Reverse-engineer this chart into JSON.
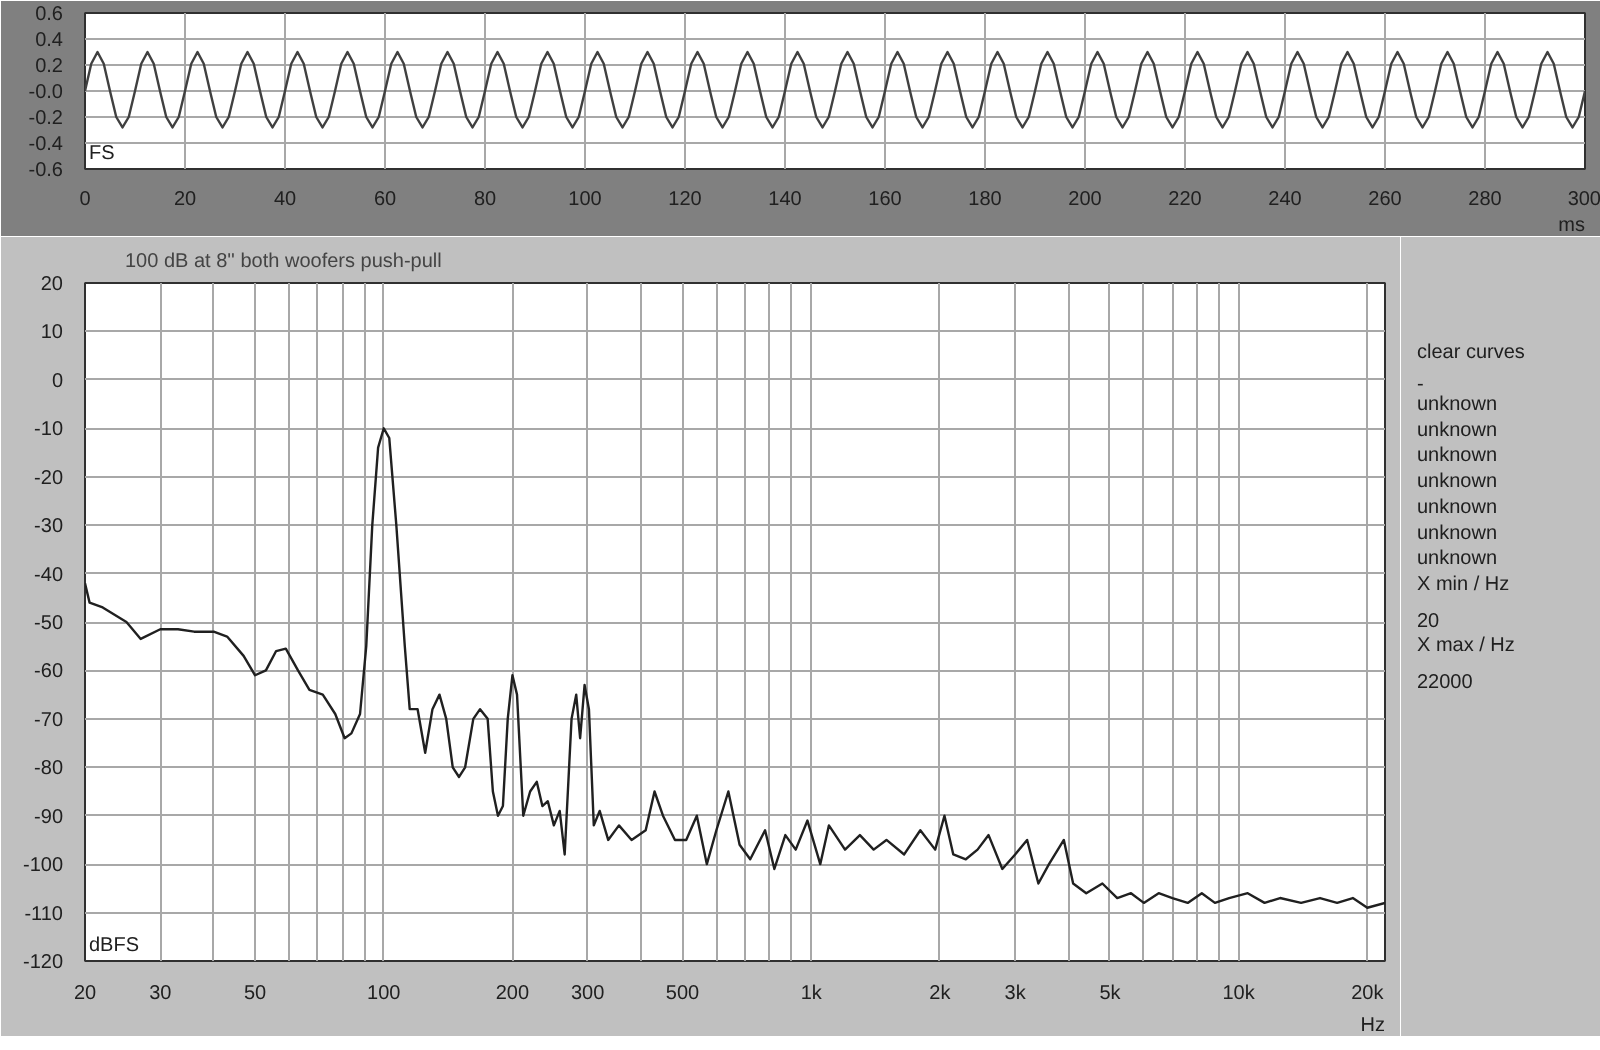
{
  "chart_data": [
    {
      "type": "line",
      "ylabel": "FS",
      "xlim": [
        0,
        300
      ],
      "ylim": [
        -0.6,
        0.6
      ],
      "xticks": [
        0,
        20,
        40,
        60,
        80,
        100,
        120,
        140,
        160,
        180,
        200,
        220,
        240,
        260,
        280,
        300
      ],
      "xlabel": "ms",
      "yticks": [
        0.6,
        0.4,
        0.2,
        {
          "value": 0,
          "label": "-0.0"
        },
        -0.2,
        -0.4,
        -0.6
      ],
      "grid": true,
      "marker": "none",
      "line_style": "solid",
      "series": [
        {
          "color": "#404040",
          "x": [
            0,
            1.25,
            2.5,
            3.75,
            5,
            6.25,
            7.5,
            8.75,
            10,
            11.25,
            12.5,
            13.75,
            15,
            16.25,
            17.5,
            18.75,
            20,
            21.25,
            22.5,
            23.75,
            25,
            26.25,
            27.5,
            28.75,
            30,
            31.25,
            32.5,
            33.75,
            35,
            36.25,
            37.5,
            38.75,
            40,
            41.25,
            42.5,
            43.75,
            45,
            46.25,
            47.5,
            48.75,
            50,
            51.25,
            52.5,
            53.75,
            55,
            56.25,
            57.5,
            58.75,
            60,
            61.25,
            62.5,
            63.75,
            65,
            66.25,
            67.5,
            68.75,
            70,
            71.25,
            72.5,
            73.75,
            75,
            76.25,
            77.5,
            78.75,
            80,
            81.25,
            82.5,
            83.75,
            85,
            86.25,
            87.5,
            88.75,
            90,
            91.25,
            92.5,
            93.75,
            95,
            96.25,
            97.5,
            98.75,
            100,
            101.25,
            102.5,
            103.75,
            105,
            106.25,
            107.5,
            108.75,
            110,
            111.25,
            112.5,
            113.75,
            115,
            116.25,
            117.5,
            118.75,
            120,
            121.25,
            122.5,
            123.75,
            125,
            126.25,
            127.5,
            128.75,
            130,
            131.25,
            132.5,
            133.75,
            135,
            136.25,
            137.5,
            138.75,
            140,
            141.25,
            142.5,
            143.75,
            145,
            146.25,
            147.5,
            148.75,
            150,
            151.25,
            152.5,
            153.75,
            155,
            156.25,
            157.5,
            158.75,
            160,
            161.25,
            162.5,
            163.75,
            165,
            166.25,
            167.5,
            168.75,
            170,
            171.25,
            172.5,
            173.75,
            175,
            176.25,
            177.5,
            178.75,
            180,
            181.25,
            182.5,
            183.75,
            185,
            186.25,
            187.5,
            188.75,
            190,
            191.25,
            192.5,
            193.75,
            195,
            196.25,
            197.5,
            198.75,
            200,
            201.25,
            202.5,
            203.75,
            205,
            206.25,
            207.5,
            208.75,
            210,
            211.25,
            212.5,
            213.75,
            215,
            216.25,
            217.5,
            218.75,
            220,
            221.25,
            222.5,
            223.75,
            225,
            226.25,
            227.5,
            228.75,
            230,
            231.25,
            232.5,
            233.75,
            235,
            236.25,
            237.5,
            238.75,
            240,
            241.25,
            242.5,
            243.75,
            245,
            246.25,
            247.5,
            248.75,
            250,
            251.25,
            252.5,
            253.75,
            255,
            256.25,
            257.5,
            258.75,
            260,
            261.25,
            262.5,
            263.75,
            265,
            266.25,
            267.5,
            268.75,
            270,
            271.25,
            272.5,
            273.75,
            275,
            276.25,
            277.5,
            278.75,
            280,
            281.25,
            282.5,
            283.75,
            285,
            286.25,
            287.5,
            288.75,
            290,
            291.25,
            292.5,
            293.75,
            295,
            296.25,
            297.5,
            298.75,
            300
          ],
          "values": [
            0,
            0.21,
            0.3,
            0.21,
            0,
            -0.2,
            -0.28,
            -0.2,
            0,
            0.21,
            0.3,
            0.21,
            0,
            -0.2,
            -0.28,
            -0.2,
            0,
            0.21,
            0.3,
            0.21,
            0,
            -0.2,
            -0.28,
            -0.2,
            0,
            0.21,
            0.3,
            0.21,
            0,
            -0.2,
            -0.28,
            -0.2,
            0,
            0.21,
            0.3,
            0.21,
            0,
            -0.2,
            -0.28,
            -0.2,
            0,
            0.21,
            0.3,
            0.21,
            0,
            -0.2,
            -0.28,
            -0.2,
            0,
            0.21,
            0.3,
            0.21,
            0,
            -0.2,
            -0.28,
            -0.2,
            0,
            0.21,
            0.3,
            0.21,
            0,
            -0.2,
            -0.28,
            -0.2,
            0,
            0.21,
            0.3,
            0.21,
            0,
            -0.2,
            -0.28,
            -0.2,
            0,
            0.21,
            0.3,
            0.21,
            0,
            -0.2,
            -0.28,
            -0.2,
            0,
            0.21,
            0.3,
            0.21,
            0,
            -0.2,
            -0.28,
            -0.2,
            0,
            0.21,
            0.3,
            0.21,
            0,
            -0.2,
            -0.28,
            -0.2,
            0,
            0.21,
            0.3,
            0.21,
            0,
            -0.2,
            -0.28,
            -0.2,
            0,
            0.21,
            0.3,
            0.21,
            0,
            -0.2,
            -0.28,
            -0.2,
            0,
            0.21,
            0.3,
            0.21,
            0,
            -0.2,
            -0.28,
            -0.2,
            0,
            0.21,
            0.3,
            0.21,
            0,
            -0.2,
            -0.28,
            -0.2,
            0,
            0.21,
            0.3,
            0.21,
            0,
            -0.2,
            -0.28,
            -0.2,
            0,
            0.21,
            0.3,
            0.21,
            0,
            -0.2,
            -0.28,
            -0.2,
            0,
            0.21,
            0.3,
            0.21,
            0,
            -0.2,
            -0.28,
            -0.2,
            0,
            0.21,
            0.3,
            0.21,
            0,
            -0.2,
            -0.28,
            -0.2,
            0,
            0.21,
            0.3,
            0.21,
            0,
            -0.2,
            -0.28,
            -0.2,
            0,
            0.21,
            0.3,
            0.21,
            0,
            -0.2,
            -0.28,
            -0.2,
            0,
            0.21,
            0.3,
            0.21,
            0,
            -0.2,
            -0.28,
            -0.2,
            0,
            0.21,
            0.3,
            0.21,
            0,
            -0.2,
            -0.28,
            -0.2,
            0,
            0.21,
            0.3,
            0.21,
            0,
            -0.2,
            -0.28,
            -0.2,
            0,
            0.21,
            0.3,
            0.21,
            0,
            -0.2,
            -0.28,
            -0.2,
            0,
            0.21,
            0.3,
            0.21,
            0,
            -0.2,
            -0.28,
            -0.2,
            0,
            0.21,
            0.3,
            0.21,
            0,
            -0.2,
            -0.28,
            -0.2,
            0,
            0.21,
            0.3,
            0.21,
            0,
            -0.2,
            -0.28,
            -0.2,
            0,
            0.21,
            0.3,
            0.21,
            0,
            -0.2,
            -0.28,
            -0.2,
            0
          ]
        }
      ]
    },
    {
      "type": "line",
      "title": "100 dB at 8'' both woofers push-pull",
      "ylabel": "dBFS",
      "log": "x",
      "xlim": [
        20,
        22000
      ],
      "ylim": [
        -120,
        20
      ],
      "xticks": [
        20,
        30,
        {
          "value": 40,
          "label": null
        },
        50,
        {
          "value": 60,
          "label": null
        },
        {
          "value": 70,
          "label": null
        },
        {
          "value": 80,
          "label": null
        },
        {
          "value": 90,
          "label": null
        },
        100,
        200,
        300,
        {
          "value": 400,
          "label": null
        },
        500,
        {
          "value": 600,
          "label": null
        },
        {
          "value": 700,
          "label": null
        },
        {
          "value": 800,
          "label": null
        },
        {
          "value": 900,
          "label": null
        },
        {
          "value": 1000,
          "label": "1k"
        },
        {
          "value": 2000,
          "label": "2k"
        },
        {
          "value": 3000,
          "label": "3k"
        },
        {
          "value": 4000,
          "label": null
        },
        {
          "value": 5000,
          "label": "5k"
        },
        {
          "value": 6000,
          "label": null
        },
        {
          "value": 7000,
          "label": null
        },
        {
          "value": 8000,
          "label": null
        },
        {
          "value": 9000,
          "label": null
        },
        {
          "value": 10000,
          "label": "10k"
        },
        {
          "value": 20000,
          "label": "20k"
        }
      ],
      "xlabel": "Hz",
      "yticks": [
        20,
        10,
        0,
        -10,
        -20,
        -30,
        -40,
        -50,
        -60,
        -70,
        -80,
        -90,
        -100,
        -110,
        -120
      ],
      "grid": true,
      "marker": "none",
      "line_style": "solid",
      "series": [
        {
          "color": "#202020",
          "x": [
            20,
            20.5,
            22,
            25,
            27,
            30,
            33,
            36,
            40,
            43,
            47,
            50,
            53,
            56,
            59,
            63,
            67,
            72,
            77,
            81,
            84,
            88,
            91,
            94,
            97,
            100,
            103,
            107,
            112,
            115,
            120,
            125,
            130,
            135,
            140,
            145,
            150,
            155,
            162,
            168,
            175,
            180,
            185,
            190,
            195,
            200,
            205,
            212,
            220,
            228,
            235,
            242,
            250,
            258,
            265,
            275,
            282,
            288,
            295,
            302,
            310,
            320,
            335,
            355,
            380,
            410,
            430,
            450,
            480,
            510,
            540,
            570,
            600,
            640,
            680,
            720,
            780,
            820,
            870,
            920,
            980,
            1050,
            1100,
            1200,
            1300,
            1400,
            1500,
            1650,
            1800,
            1950,
            2050,
            2150,
            2300,
            2450,
            2600,
            2800,
            3000,
            3200,
            3400,
            3600,
            3900,
            4100,
            4400,
            4800,
            5200,
            5600,
            6000,
            6500,
            7000,
            7600,
            8200,
            8800,
            9500,
            10500,
            11500,
            12500,
            14000,
            15500,
            17000,
            18500,
            20000,
            22000
          ],
          "values": [
            -42,
            -46,
            -47,
            -50,
            -53.5,
            -51.5,
            -51.5,
            -52,
            -52,
            -53,
            -57,
            -61,
            -60,
            -56,
            -55.5,
            -60,
            -64,
            -65,
            -69,
            -74,
            -73,
            -69,
            -55,
            -30,
            -14,
            -10,
            -12,
            -30,
            -55,
            -68,
            -68,
            -77,
            -68,
            -65,
            -70,
            -80,
            -82,
            -80,
            -70,
            -68,
            -70,
            -85,
            -90,
            -88,
            -70,
            -61,
            -65,
            -90,
            -85,
            -83,
            -88,
            -87,
            -92,
            -89,
            -98,
            -70,
            -65,
            -74,
            -63,
            -68,
            -92,
            -89,
            -95,
            -92,
            -95,
            -93,
            -85,
            -90,
            -95,
            -95,
            -90,
            -100,
            -93,
            -85,
            -96,
            -99,
            -93,
            -101,
            -94,
            -97,
            -91,
            -100,
            -92,
            -97,
            -94,
            -97,
            -95,
            -98,
            -93,
            -97,
            -90,
            -98,
            -99,
            -97,
            -94,
            -101,
            -98,
            -95,
            -104,
            -100,
            -95,
            -104,
            -106,
            -104,
            -107,
            -106,
            -108,
            -106,
            -107,
            -108,
            -106,
            -108,
            -107,
            -106,
            -108,
            -107,
            -108,
            -107,
            -108,
            -107,
            -109,
            -108
          ]
        }
      ]
    },
    {
      "type": "other",
      "annotations": [
        "clear curves",
        "-",
        "unknown",
        "unknown",
        "unknown",
        "unknown",
        "unknown",
        "unknown",
        "unknown",
        "X min / Hz",
        "20",
        "X max / Hz",
        "22000"
      ]
    }
  ]
}
